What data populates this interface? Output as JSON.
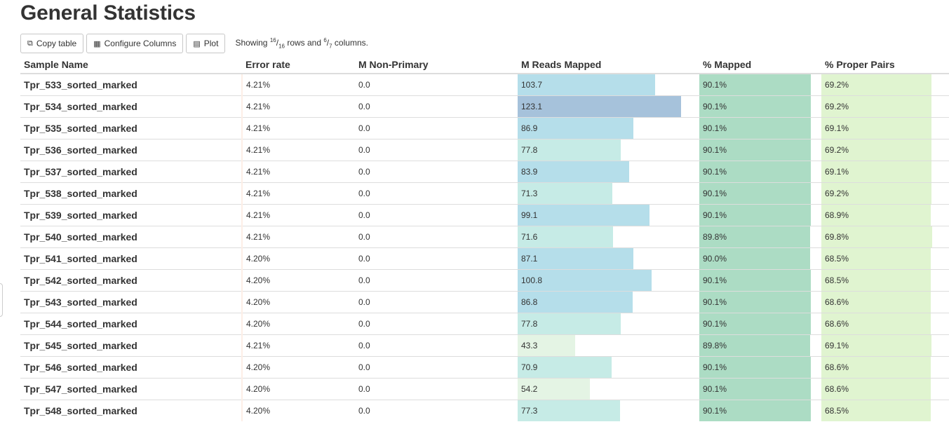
{
  "title": "General Statistics",
  "toolbar": {
    "copy_label": "Copy table",
    "configure_label": "Configure Columns",
    "plot_label": "Plot",
    "showing_prefix": "Showing ",
    "rows_shown": "16",
    "rows_total": "16",
    "rows_text": " rows and ",
    "cols_shown": "6",
    "cols_total": "7",
    "cols_text": " columns."
  },
  "colors": {
    "reads_mapped_scale": [
      "#e4f4e4",
      "#c6ebe6",
      "#b5deea",
      "#a6c2db"
    ],
    "pct_mapped": "#acdcc4",
    "pct_proper": "#e0f4d0"
  },
  "columns": [
    "Sample Name",
    "Error rate",
    "M Non-Primary",
    "M Reads Mapped",
    "% Mapped",
    "% Proper Pairs"
  ],
  "rows": [
    {
      "name": "Tpr_533_sorted_marked",
      "error": "4.21%",
      "nonprimary": "0.0",
      "reads": "103.7",
      "mapped": "90.1%",
      "proper": "69.2%"
    },
    {
      "name": "Tpr_534_sorted_marked",
      "error": "4.21%",
      "nonprimary": "0.0",
      "reads": "123.1",
      "mapped": "90.1%",
      "proper": "69.2%"
    },
    {
      "name": "Tpr_535_sorted_marked",
      "error": "4.21%",
      "nonprimary": "0.0",
      "reads": "86.9",
      "mapped": "90.1%",
      "proper": "69.1%"
    },
    {
      "name": "Tpr_536_sorted_marked",
      "error": "4.21%",
      "nonprimary": "0.0",
      "reads": "77.8",
      "mapped": "90.1%",
      "proper": "69.2%"
    },
    {
      "name": "Tpr_537_sorted_marked",
      "error": "4.21%",
      "nonprimary": "0.0",
      "reads": "83.9",
      "mapped": "90.1%",
      "proper": "69.1%"
    },
    {
      "name": "Tpr_538_sorted_marked",
      "error": "4.21%",
      "nonprimary": "0.0",
      "reads": "71.3",
      "mapped": "90.1%",
      "proper": "69.2%"
    },
    {
      "name": "Tpr_539_sorted_marked",
      "error": "4.21%",
      "nonprimary": "0.0",
      "reads": "99.1",
      "mapped": "90.1%",
      "proper": "68.9%"
    },
    {
      "name": "Tpr_540_sorted_marked",
      "error": "4.21%",
      "nonprimary": "0.0",
      "reads": "71.6",
      "mapped": "89.8%",
      "proper": "69.8%"
    },
    {
      "name": "Tpr_541_sorted_marked",
      "error": "4.20%",
      "nonprimary": "0.0",
      "reads": "87.1",
      "mapped": "90.0%",
      "proper": "68.5%"
    },
    {
      "name": "Tpr_542_sorted_marked",
      "error": "4.20%",
      "nonprimary": "0.0",
      "reads": "100.8",
      "mapped": "90.1%",
      "proper": "68.5%"
    },
    {
      "name": "Tpr_543_sorted_marked",
      "error": "4.20%",
      "nonprimary": "0.0",
      "reads": "86.8",
      "mapped": "90.1%",
      "proper": "68.6%"
    },
    {
      "name": "Tpr_544_sorted_marked",
      "error": "4.20%",
      "nonprimary": "0.0",
      "reads": "77.8",
      "mapped": "90.1%",
      "proper": "68.6%"
    },
    {
      "name": "Tpr_545_sorted_marked",
      "error": "4.21%",
      "nonprimary": "0.0",
      "reads": "43.3",
      "mapped": "89.8%",
      "proper": "69.1%"
    },
    {
      "name": "Tpr_546_sorted_marked",
      "error": "4.20%",
      "nonprimary": "0.0",
      "reads": "70.9",
      "mapped": "90.1%",
      "proper": "68.6%"
    },
    {
      "name": "Tpr_547_sorted_marked",
      "error": "4.20%",
      "nonprimary": "0.0",
      "reads": "54.2",
      "mapped": "90.1%",
      "proper": "68.6%"
    },
    {
      "name": "Tpr_548_sorted_marked",
      "error": "4.20%",
      "nonprimary": "0.0",
      "reads": "77.3",
      "mapped": "90.1%",
      "proper": "68.5%"
    }
  ]
}
